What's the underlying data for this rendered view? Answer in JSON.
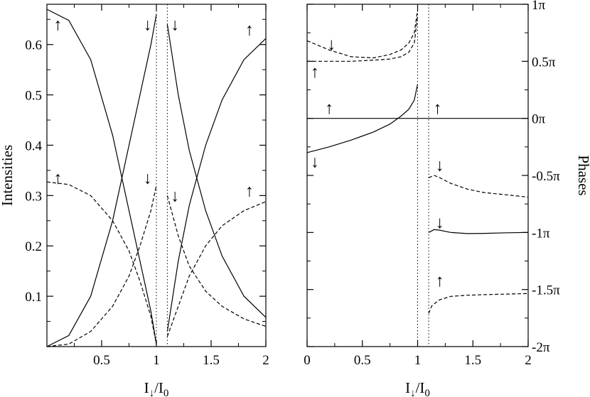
{
  "chart_data": [
    {
      "type": "line",
      "xlabel": "I↓/I0",
      "ylabel": "Intensities",
      "xlim": [
        0,
        2
      ],
      "ylim": [
        0,
        0.68
      ],
      "xticks": [
        {
          "v": 0.5,
          "label": "0.5"
        },
        {
          "v": 1,
          "label": "1"
        },
        {
          "v": 1.5,
          "label": "1.5"
        },
        {
          "v": 2,
          "label": "2"
        }
      ],
      "yticks": [
        {
          "v": 0.1,
          "label": "0.1"
        },
        {
          "v": 0.2,
          "label": "0.2"
        },
        {
          "v": 0.3,
          "label": "0.3"
        },
        {
          "v": 0.4,
          "label": "0.4"
        },
        {
          "v": 0.5,
          "label": "0.5"
        },
        {
          "v": 0.6,
          "label": "0.6"
        }
      ],
      "vlines": [
        1.0,
        1.1
      ],
      "series": [
        {
          "style": "solid",
          "x": [
            0,
            0.2,
            0.4,
            0.6,
            0.75,
            0.85,
            0.95,
            1.0
          ],
          "y": [
            0.67,
            0.648,
            0.57,
            0.42,
            0.27,
            0.17,
            0.07,
            0.005
          ]
        },
        {
          "style": "solid",
          "x": [
            0,
            0.2,
            0.4,
            0.6,
            0.75,
            0.85,
            0.95,
            1.0
          ],
          "y": [
            0.0,
            0.022,
            0.1,
            0.25,
            0.4,
            0.5,
            0.6,
            0.66
          ]
        },
        {
          "style": "solid",
          "x": [
            1.1,
            1.2,
            1.3,
            1.45,
            1.6,
            1.8,
            2.0
          ],
          "y": [
            0.64,
            0.5,
            0.39,
            0.27,
            0.18,
            0.1,
            0.058
          ]
        },
        {
          "style": "solid",
          "x": [
            1.1,
            1.2,
            1.3,
            1.45,
            1.6,
            1.8,
            2.0
          ],
          "y": [
            0.03,
            0.17,
            0.28,
            0.4,
            0.49,
            0.57,
            0.612
          ]
        },
        {
          "style": "dashed",
          "x": [
            0,
            0.2,
            0.4,
            0.6,
            0.75,
            0.85,
            0.95,
            1.0
          ],
          "y": [
            0.327,
            0.322,
            0.3,
            0.25,
            0.19,
            0.13,
            0.06,
            0.005
          ]
        },
        {
          "style": "dashed",
          "x": [
            0,
            0.2,
            0.4,
            0.6,
            0.75,
            0.85,
            0.95,
            1.0
          ],
          "y": [
            0.0,
            0.005,
            0.03,
            0.08,
            0.14,
            0.2,
            0.27,
            0.32
          ]
        },
        {
          "style": "dashed",
          "x": [
            1.1,
            1.2,
            1.3,
            1.45,
            1.6,
            1.8,
            2.0
          ],
          "y": [
            0.3,
            0.22,
            0.16,
            0.11,
            0.08,
            0.055,
            0.04
          ]
        },
        {
          "style": "dashed",
          "x": [
            1.1,
            1.2,
            1.3,
            1.45,
            1.6,
            1.8,
            2.0
          ],
          "y": [
            0.02,
            0.08,
            0.14,
            0.2,
            0.24,
            0.27,
            0.288
          ]
        }
      ],
      "annotations": [
        {
          "text": "↑",
          "x": 0.1,
          "y": 0.64
        },
        {
          "text": "↓",
          "x": 0.92,
          "y": 0.64
        },
        {
          "text": "↓",
          "x": 1.17,
          "y": 0.64
        },
        {
          "text": "↑",
          "x": 1.85,
          "y": 0.63
        },
        {
          "text": "↑",
          "x": 0.1,
          "y": 0.335
        },
        {
          "text": "↓",
          "x": 0.92,
          "y": 0.335
        },
        {
          "text": "↓",
          "x": 1.17,
          "y": 0.3
        },
        {
          "text": "↑",
          "x": 1.85,
          "y": 0.31
        }
      ]
    },
    {
      "type": "line",
      "xlabel": "I↓/I0",
      "ylabel": "Phases",
      "xlim": [
        0,
        2
      ],
      "ylim": [
        -2,
        1
      ],
      "xticks": [
        {
          "v": 0,
          "label": "0"
        },
        {
          "v": 0.5,
          "label": "0.5"
        },
        {
          "v": 1,
          "label": "1"
        },
        {
          "v": 1.5,
          "label": "1.5"
        },
        {
          "v": 2,
          "label": "2"
        }
      ],
      "yticks": [
        {
          "v": 1,
          "label": "1π"
        },
        {
          "v": 0.5,
          "label": "0.5π"
        },
        {
          "v": 0,
          "label": "0π"
        },
        {
          "v": -0.5,
          "label": "-0.5π"
        },
        {
          "v": -1,
          "label": "-1π"
        },
        {
          "v": -1.5,
          "label": "-1.5π"
        },
        {
          "v": -2,
          "label": "-2π"
        }
      ],
      "vlines": [
        1.0,
        1.1
      ],
      "series": [
        {
          "style": "solid",
          "x": [
            0,
            2
          ],
          "y": [
            0,
            0
          ]
        },
        {
          "style": "solid",
          "x": [
            0,
            0.2,
            0.4,
            0.6,
            0.75,
            0.85,
            0.92,
            0.97,
            1.0
          ],
          "y": [
            -0.3,
            -0.25,
            -0.19,
            -0.12,
            -0.05,
            0.02,
            0.08,
            0.16,
            0.3
          ]
        },
        {
          "style": "dashed",
          "x": [
            0,
            0.2,
            0.4,
            0.6,
            0.75,
            0.85,
            0.92,
            0.97,
            1.0
          ],
          "y": [
            0.68,
            0.6,
            0.54,
            0.53,
            0.56,
            0.6,
            0.66,
            0.75,
            0.95
          ]
        },
        {
          "style": "dashed",
          "x": [
            0,
            0.2,
            0.4,
            0.6,
            0.75,
            0.85,
            0.92,
            0.97,
            1.0
          ],
          "y": [
            0.5,
            0.5,
            0.5,
            0.51,
            0.52,
            0.54,
            0.58,
            0.66,
            0.9
          ]
        },
        {
          "style": "dashed",
          "x": [
            1.1,
            1.15,
            1.2,
            1.3,
            1.45,
            1.6,
            1.8,
            2.0
          ],
          "y": [
            -0.52,
            -0.5,
            -0.52,
            -0.57,
            -0.62,
            -0.65,
            -0.67,
            -0.69
          ]
        },
        {
          "style": "solid",
          "x": [
            1.1,
            1.15,
            1.2,
            1.3,
            1.45,
            1.6,
            1.8,
            2.0
          ],
          "y": [
            -1.0,
            -0.975,
            -0.98,
            -1.0,
            -1.01,
            -1.008,
            -1.003,
            -1.0
          ]
        },
        {
          "style": "dashed",
          "x": [
            1.1,
            1.13,
            1.2,
            1.3,
            1.45,
            1.6,
            1.8,
            2.0
          ],
          "y": [
            -1.71,
            -1.64,
            -1.59,
            -1.56,
            -1.55,
            -1.545,
            -1.54,
            -1.535
          ]
        }
      ],
      "annotations": [
        {
          "text": "↓",
          "x": 0.22,
          "y": 0.65
        },
        {
          "text": "↑",
          "x": 0.07,
          "y": 0.41
        },
        {
          "text": "↑",
          "x": 0.2,
          "y": 0.09
        },
        {
          "text": "↓",
          "x": 0.07,
          "y": -0.38
        },
        {
          "text": "↑",
          "x": 1.18,
          "y": 0.09
        },
        {
          "text": "↓",
          "x": 1.2,
          "y": -0.41
        },
        {
          "text": "↓",
          "x": 1.2,
          "y": -0.91
        },
        {
          "text": "↑",
          "x": 1.2,
          "y": -1.42
        }
      ]
    }
  ]
}
